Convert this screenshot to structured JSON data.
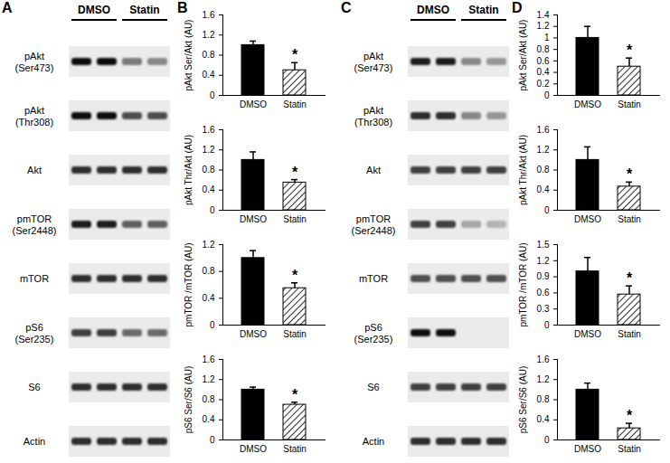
{
  "chart_data": [
    {
      "type": "bar",
      "panel": "B",
      "y_label": "pAkt Ser/Akt (AU)",
      "categories": [
        "DMSO",
        "Statin"
      ],
      "values": [
        1.0,
        0.5
      ],
      "errors": [
        0.08,
        0.15
      ],
      "colors": [
        "#000000",
        "#000000"
      ],
      "ylim": [
        0,
        1.6
      ],
      "yticks": [
        0,
        0.4,
        0.8,
        1.2,
        1.6
      ],
      "annotations": [
        {
          "category": "Statin",
          "text": "*"
        }
      ]
    },
    {
      "type": "bar",
      "panel": "B",
      "y_label": "pAkt Thr/Akt (AU)",
      "categories": [
        "DMSO",
        "Statin"
      ],
      "values": [
        1.0,
        0.55
      ],
      "errors": [
        0.16,
        0.06
      ],
      "colors": [
        "#000000",
        "#000000"
      ],
      "ylim": [
        0,
        1.6
      ],
      "yticks": [
        0,
        0.4,
        0.8,
        1.2,
        1.6
      ],
      "annotations": [
        {
          "category": "Statin",
          "text": "*"
        }
      ]
    },
    {
      "type": "bar",
      "panel": "B",
      "y_label": "pmTOR /mTOR (AU)",
      "categories": [
        "DMSO",
        "Statin"
      ],
      "values": [
        1.0,
        0.55
      ],
      "errors": [
        0.11,
        0.08
      ],
      "colors": [
        "#000000",
        "#000000"
      ],
      "ylim": [
        0,
        1.2
      ],
      "yticks": [
        0,
        0.4,
        0.8,
        1.2
      ],
      "annotations": [
        {
          "category": "Statin",
          "text": "*"
        }
      ]
    },
    {
      "type": "bar",
      "panel": "B",
      "y_label": "pS6 Ser/S6 (AU)",
      "categories": [
        "DMSO",
        "Statin"
      ],
      "values": [
        1.0,
        0.7
      ],
      "errors": [
        0.05,
        0.05
      ],
      "colors": [
        "#000000",
        "#000000"
      ],
      "ylim": [
        0,
        1.6
      ],
      "yticks": [
        0,
        0.4,
        0.8,
        1.2,
        1.6
      ],
      "annotations": [
        {
          "category": "Statin",
          "text": "*"
        }
      ]
    },
    {
      "type": "bar",
      "panel": "D",
      "y_label": "pAkt Ser/Akt (AU)",
      "categories": [
        "DMSO",
        "Statin"
      ],
      "values": [
        1.0,
        0.5
      ],
      "errors": [
        0.2,
        0.15
      ],
      "colors": [
        "#000000",
        "#000000"
      ],
      "ylim": [
        0,
        1.4
      ],
      "yticks": [
        0,
        0.2,
        0.4,
        0.6,
        0.8,
        1.0,
        1.2,
        1.4
      ],
      "annotations": [
        {
          "category": "Statin",
          "text": "*"
        }
      ]
    },
    {
      "type": "bar",
      "panel": "D",
      "y_label": "pAkt Thr/Akt (AU)",
      "categories": [
        "DMSO",
        "Statin"
      ],
      "values": [
        1.0,
        0.47
      ],
      "errors": [
        0.26,
        0.09
      ],
      "colors": [
        "#000000",
        "#000000"
      ],
      "ylim": [
        0,
        1.6
      ],
      "yticks": [
        0,
        0.4,
        0.8,
        1.2,
        1.6
      ],
      "annotations": [
        {
          "category": "Statin",
          "text": "*"
        }
      ]
    },
    {
      "type": "bar",
      "panel": "D",
      "y_label": "pmTOR /mTOR (AU)",
      "categories": [
        "DMSO",
        "Statin"
      ],
      "values": [
        1.0,
        0.57
      ],
      "errors": [
        0.26,
        0.16
      ],
      "colors": [
        "#000000",
        "#000000"
      ],
      "ylim": [
        0,
        1.5
      ],
      "yticks": [
        0,
        0.3,
        0.6,
        0.9,
        1.2,
        1.5
      ],
      "annotations": [
        {
          "category": "Statin",
          "text": "*"
        }
      ]
    },
    {
      "type": "bar",
      "panel": "D",
      "y_label": "pS6 Ser/S6 (AU)",
      "categories": [
        "DMSO",
        "Statin"
      ],
      "values": [
        1.0,
        0.23
      ],
      "errors": [
        0.13,
        0.1
      ],
      "colors": [
        "#000000",
        "#000000"
      ],
      "ylim": [
        0,
        1.6
      ],
      "yticks": [
        0,
        0.4,
        0.8,
        1.2,
        1.6
      ],
      "annotations": [
        {
          "category": "Statin",
          "text": "*"
        }
      ]
    }
  ],
  "blots": [
    {
      "panel": "A",
      "groups": [
        "DMSO",
        "Statin"
      ],
      "rows": [
        {
          "label": [
            "pAkt",
            "(Ser473)"
          ],
          "intensities": [
            0.95,
            0.95,
            0.6,
            0.55
          ]
        },
        {
          "label": [
            "pAkt",
            "(Thr308)"
          ],
          "intensities": [
            0.95,
            0.95,
            0.75,
            0.75
          ]
        },
        {
          "label": [
            "Akt"
          ],
          "intensities": [
            0.85,
            0.85,
            0.85,
            0.85
          ]
        },
        {
          "label": [
            "pmTOR",
            "(Ser2448)"
          ],
          "intensities": [
            0.9,
            0.9,
            0.7,
            0.7
          ]
        },
        {
          "label": [
            "mTOR"
          ],
          "intensities": [
            0.85,
            0.85,
            0.85,
            0.85
          ]
        },
        {
          "label": [
            "pS6",
            "(Ser235)"
          ],
          "intensities": [
            0.8,
            0.8,
            0.65,
            0.65
          ]
        },
        {
          "label": [
            "S6"
          ],
          "intensities": [
            0.85,
            0.85,
            0.85,
            0.85
          ]
        },
        {
          "label": [
            "Actin"
          ],
          "intensities": [
            0.85,
            0.85,
            0.85,
            0.85
          ]
        }
      ]
    },
    {
      "panel": "C",
      "groups": [
        "DMSO",
        "Statin"
      ],
      "rows": [
        {
          "label": [
            "pAkt",
            "(Ser473)"
          ],
          "intensities": [
            0.9,
            0.9,
            0.55,
            0.5
          ]
        },
        {
          "label": [
            "pAkt",
            "(Thr308)"
          ],
          "intensities": [
            0.85,
            0.85,
            0.55,
            0.5
          ]
        },
        {
          "label": [
            "Akt"
          ],
          "intensities": [
            0.8,
            0.8,
            0.8,
            0.8
          ]
        },
        {
          "label": [
            "pmTOR",
            "(Ser2448)"
          ],
          "intensities": [
            0.8,
            0.8,
            0.45,
            0.4
          ]
        },
        {
          "label": [
            "mTOR"
          ],
          "intensities": [
            0.75,
            0.75,
            0.75,
            0.75
          ]
        },
        {
          "label": [
            "pS6",
            "(Ser235)"
          ],
          "intensities": [
            0.95,
            0.95,
            0,
            0
          ]
        },
        {
          "label": [
            "S6"
          ],
          "intensities": [
            0.8,
            0.8,
            0.8,
            0.8
          ]
        },
        {
          "label": [
            "Actin"
          ],
          "intensities": [
            0.85,
            0.85,
            0.85,
            0.85
          ]
        }
      ]
    }
  ]
}
